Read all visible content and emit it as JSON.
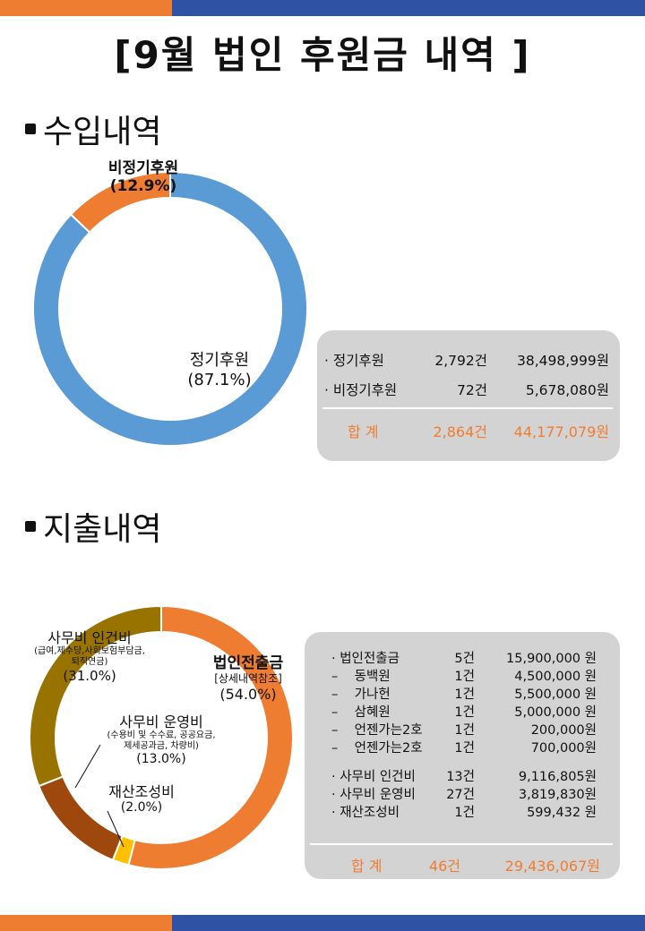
{
  "header": {
    "title": "[9월 법인 후원금 내역 ]"
  },
  "income": {
    "section_title": "수입내역",
    "chart_labels": {
      "regular": {
        "name": "정기후원",
        "pct": "(87.1%)"
      },
      "irregular": {
        "name": "비정기후원",
        "pct": "(12.9%)"
      }
    },
    "table": {
      "rows": [
        {
          "label": "· 정기후원",
          "count": "2,792건",
          "amount": "38,498,999원"
        },
        {
          "label": "· 비정기후원",
          "count": "72건",
          "amount": "5,678,080원"
        }
      ],
      "total": {
        "label": "합   계",
        "count": "2,864건",
        "amount": "44,177,079원"
      }
    }
  },
  "expense": {
    "section_title": "지출내역",
    "chart_labels": {
      "corporate": {
        "name": "법인전출금",
        "sub": "[상세내역참조]",
        "pct": "(54.0%)"
      },
      "labor": {
        "name": "사무비 인건비",
        "sub1": "(급여,제수당,사회보험부담금,",
        "sub2": "퇴직연금)",
        "pct": "(31.0%)"
      },
      "operation": {
        "name": "사무비 운영비",
        "sub1": "(수용비 및 수수료, 공공요금,",
        "sub2": "제세공과금, 차량비)",
        "pct": "(13.0%)"
      },
      "property": {
        "name": "재산조성비",
        "pct": "(2.0%)"
      }
    },
    "table": {
      "rows": [
        {
          "label": "· 법인전출금",
          "count": "5건",
          "amount": "15,900,000 원"
        },
        {
          "label": "–    동백원",
          "count": "1건",
          "amount": "4,500,000 원"
        },
        {
          "label": "–    가나헌",
          "count": "1건",
          "amount": "5,500,000 원"
        },
        {
          "label": "–    삼혜원",
          "count": "1건",
          "amount": "5,000,000 원"
        },
        {
          "label": "–    언젠가는2호",
          "count": "1건",
          "amount": "200,000원"
        },
        {
          "label": "–    언젠가는2호",
          "count": "1건",
          "amount": "700,000원"
        },
        {
          "label": "· 사무비 인건비",
          "count": "13건",
          "amount": "9,116,805원"
        },
        {
          "label": "· 사무비 운영비",
          "count": "27건",
          "amount": "3,819,830원"
        },
        {
          "label": "· 재산조성비",
          "count": "1건",
          "amount": "599,432 원"
        }
      ],
      "total": {
        "label": "합   계",
        "count": "46건",
        "amount": "29,436,067원"
      }
    }
  },
  "chart_data": [
    {
      "type": "pie",
      "categories": [
        "정기후원",
        "비정기후원"
      ],
      "values": [
        87.1,
        12.9
      ],
      "colors": [
        "#5b9bd5",
        "#ee7d31"
      ]
    },
    {
      "type": "pie",
      "categories": [
        "법인전출금",
        "재산조성비",
        "사무비 운영비",
        "사무비 인건비"
      ],
      "values": [
        54.0,
        2.0,
        13.0,
        31.0
      ],
      "colors": [
        "#ee7d31",
        "#ffc000",
        "#9e480e",
        "#997300"
      ]
    }
  ]
}
